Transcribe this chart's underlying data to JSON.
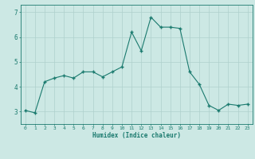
{
  "x": [
    0,
    1,
    2,
    3,
    4,
    5,
    6,
    7,
    8,
    9,
    10,
    11,
    12,
    13,
    14,
    15,
    16,
    17,
    18,
    19,
    20,
    21,
    22,
    23
  ],
  "y": [
    3.05,
    2.95,
    4.2,
    4.35,
    4.45,
    4.35,
    4.6,
    4.6,
    4.4,
    4.6,
    4.8,
    6.2,
    5.45,
    6.8,
    6.4,
    6.4,
    6.35,
    4.6,
    4.1,
    3.25,
    3.05,
    3.3,
    3.25,
    3.3
  ],
  "xlabel": "Humidex (Indice chaleur)",
  "ylim": [
    2.5,
    7.3
  ],
  "xlim": [
    -0.5,
    23.5
  ],
  "yticks": [
    3,
    4,
    5,
    6,
    7
  ],
  "xticks": [
    0,
    1,
    2,
    3,
    4,
    5,
    6,
    7,
    8,
    9,
    10,
    11,
    12,
    13,
    14,
    15,
    16,
    17,
    18,
    19,
    20,
    21,
    22,
    23
  ],
  "line_color": "#1a7a6e",
  "marker": "+",
  "bg_color": "#cce8e4",
  "grid_color": "#aed0cc",
  "axis_color": "#1a7a6e",
  "tick_color": "#1a7a6e",
  "label_color": "#1a7a6e"
}
